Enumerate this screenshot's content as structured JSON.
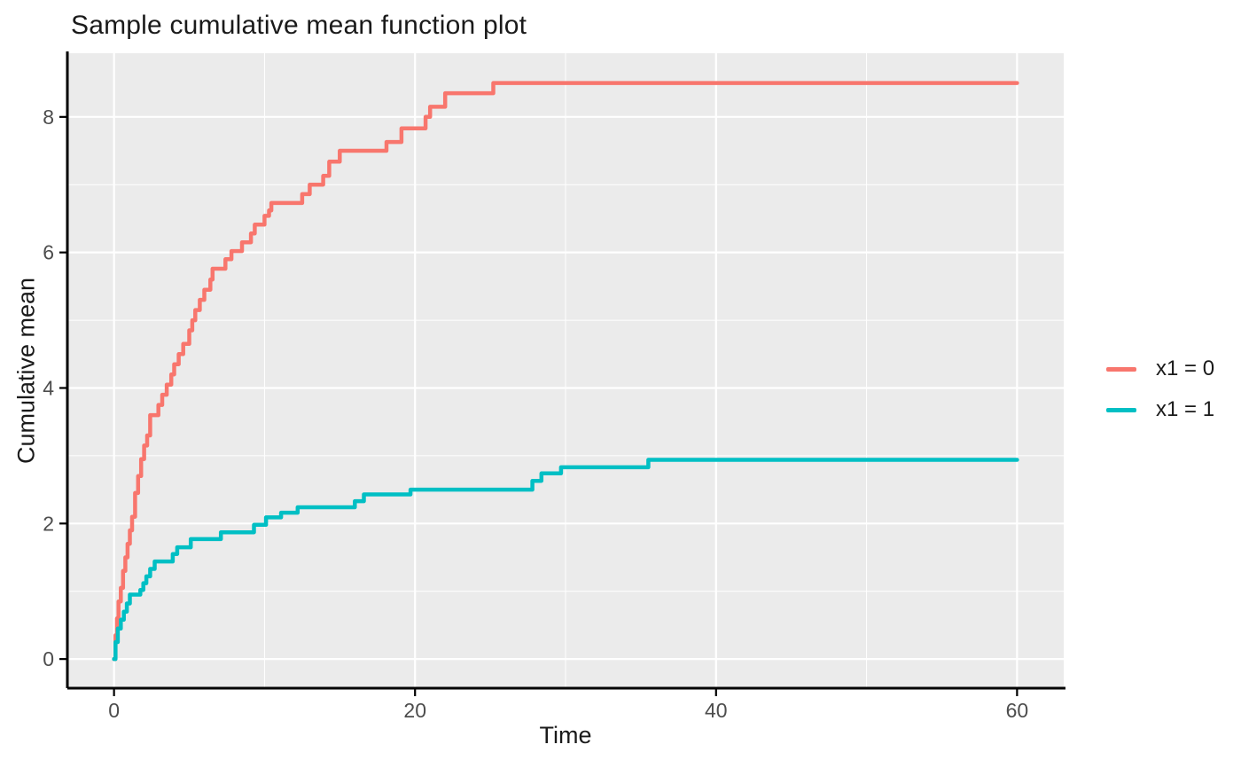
{
  "chart_data": {
    "type": "line",
    "subtype": "step",
    "title": "Sample cumulative mean function plot",
    "xlabel": "Time",
    "ylabel": "Cumulative mean",
    "x_ticks": [
      0,
      20,
      40,
      60
    ],
    "x_minor_ticks": [
      10,
      30,
      50
    ],
    "y_ticks": [
      0,
      2,
      4,
      6,
      8
    ],
    "y_minor_ticks": [
      1,
      3,
      5,
      7
    ],
    "xlim": [
      -3.1,
      63.1
    ],
    "ylim": [
      -0.43,
      8.94
    ],
    "grid": true,
    "panel_bg_color": "#EBEBEB",
    "grid_color": "#FFFFFF",
    "axis_line_color": "#000000",
    "tick_label_color": "#4D4D4D",
    "title_color": "#1a1a1a",
    "line_width": 4.5,
    "legend_position": "right",
    "series": [
      {
        "name": "x1 = 0",
        "color": "#F8766D",
        "points": [
          [
            0,
            0
          ],
          [
            0.1,
            0.35
          ],
          [
            0.2,
            0.6
          ],
          [
            0.3,
            0.85
          ],
          [
            0.45,
            1.05
          ],
          [
            0.6,
            1.3
          ],
          [
            0.75,
            1.5
          ],
          [
            0.9,
            1.7
          ],
          [
            1.05,
            1.9
          ],
          [
            1.2,
            2.1
          ],
          [
            1.4,
            2.45
          ],
          [
            1.6,
            2.7
          ],
          [
            1.8,
            2.95
          ],
          [
            2.0,
            3.15
          ],
          [
            2.2,
            3.3
          ],
          [
            2.4,
            3.6
          ],
          [
            2.95,
            3.75
          ],
          [
            3.2,
            3.9
          ],
          [
            3.5,
            4.05
          ],
          [
            3.8,
            4.2
          ],
          [
            4.0,
            4.35
          ],
          [
            4.3,
            4.5
          ],
          [
            4.6,
            4.65
          ],
          [
            5.0,
            4.85
          ],
          [
            5.2,
            5.0
          ],
          [
            5.4,
            5.15
          ],
          [
            5.7,
            5.3
          ],
          [
            6.0,
            5.45
          ],
          [
            6.4,
            5.6
          ],
          [
            6.55,
            5.76
          ],
          [
            7.4,
            5.9
          ],
          [
            7.8,
            6.02
          ],
          [
            8.5,
            6.15
          ],
          [
            9.1,
            6.28
          ],
          [
            9.35,
            6.41
          ],
          [
            10.0,
            6.54
          ],
          [
            10.3,
            6.62
          ],
          [
            10.45,
            6.73
          ],
          [
            12.5,
            6.86
          ],
          [
            13.0,
            7.0
          ],
          [
            13.9,
            7.13
          ],
          [
            14.3,
            7.34
          ],
          [
            15.0,
            7.5
          ],
          [
            18.1,
            7.63
          ],
          [
            19.1,
            7.83
          ],
          [
            20.7,
            8.0
          ],
          [
            21.0,
            8.15
          ],
          [
            22.0,
            8.35
          ],
          [
            25.2,
            8.5
          ],
          [
            60,
            8.5
          ]
        ]
      },
      {
        "name": "x1 = 1",
        "color": "#00BFC4",
        "points": [
          [
            0,
            0
          ],
          [
            0.1,
            0.25
          ],
          [
            0.25,
            0.45
          ],
          [
            0.45,
            0.58
          ],
          [
            0.65,
            0.7
          ],
          [
            0.85,
            0.82
          ],
          [
            1.05,
            0.95
          ],
          [
            1.75,
            1.02
          ],
          [
            1.95,
            1.12
          ],
          [
            2.15,
            1.22
          ],
          [
            2.4,
            1.33
          ],
          [
            2.7,
            1.44
          ],
          [
            3.9,
            1.55
          ],
          [
            4.2,
            1.65
          ],
          [
            5.1,
            1.77
          ],
          [
            7.1,
            1.87
          ],
          [
            9.3,
            1.98
          ],
          [
            10.1,
            2.09
          ],
          [
            11.1,
            2.16
          ],
          [
            12.2,
            2.24
          ],
          [
            16.0,
            2.33
          ],
          [
            16.6,
            2.43
          ],
          [
            19.7,
            2.5
          ],
          [
            27.8,
            2.63
          ],
          [
            28.4,
            2.74
          ],
          [
            29.7,
            2.83
          ],
          [
            35.5,
            2.94
          ],
          [
            60,
            2.94
          ]
        ]
      }
    ],
    "legend": {
      "items": [
        {
          "label": "x1 = 0",
          "color": "#F8766D"
        },
        {
          "label": "x1 = 1",
          "color": "#00BFC4"
        }
      ]
    }
  }
}
